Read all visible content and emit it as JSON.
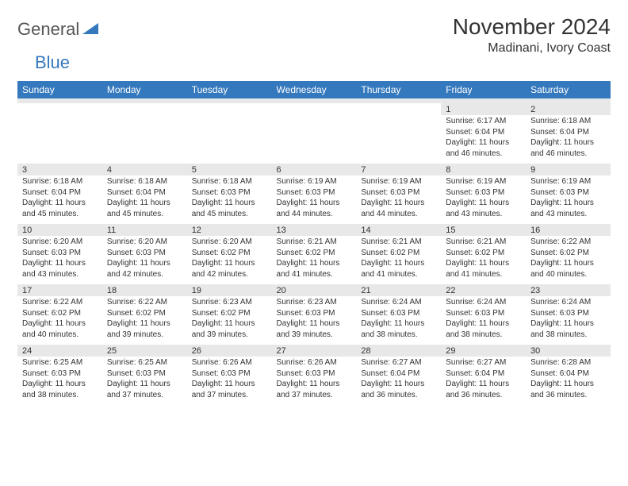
{
  "logo": {
    "word1": "General",
    "word2": "Blue"
  },
  "header": {
    "title": "November 2024",
    "location": "Madinani, Ivory Coast"
  },
  "colors": {
    "header_bg": "#3478bd",
    "header_fg": "#ffffff",
    "num_bg": "#e8e8e8",
    "body_bg": "#ffffff"
  },
  "weekdays": [
    "Sunday",
    "Monday",
    "Tuesday",
    "Wednesday",
    "Thursday",
    "Friday",
    "Saturday"
  ],
  "weeks": [
    [
      null,
      null,
      null,
      null,
      null,
      {
        "n": "1",
        "sr": "Sunrise: 6:17 AM",
        "ss": "Sunset: 6:04 PM",
        "dl": "Daylight: 11 hours and 46 minutes."
      },
      {
        "n": "2",
        "sr": "Sunrise: 6:18 AM",
        "ss": "Sunset: 6:04 PM",
        "dl": "Daylight: 11 hours and 46 minutes."
      }
    ],
    [
      {
        "n": "3",
        "sr": "Sunrise: 6:18 AM",
        "ss": "Sunset: 6:04 PM",
        "dl": "Daylight: 11 hours and 45 minutes."
      },
      {
        "n": "4",
        "sr": "Sunrise: 6:18 AM",
        "ss": "Sunset: 6:04 PM",
        "dl": "Daylight: 11 hours and 45 minutes."
      },
      {
        "n": "5",
        "sr": "Sunrise: 6:18 AM",
        "ss": "Sunset: 6:03 PM",
        "dl": "Daylight: 11 hours and 45 minutes."
      },
      {
        "n": "6",
        "sr": "Sunrise: 6:19 AM",
        "ss": "Sunset: 6:03 PM",
        "dl": "Daylight: 11 hours and 44 minutes."
      },
      {
        "n": "7",
        "sr": "Sunrise: 6:19 AM",
        "ss": "Sunset: 6:03 PM",
        "dl": "Daylight: 11 hours and 44 minutes."
      },
      {
        "n": "8",
        "sr": "Sunrise: 6:19 AM",
        "ss": "Sunset: 6:03 PM",
        "dl": "Daylight: 11 hours and 43 minutes."
      },
      {
        "n": "9",
        "sr": "Sunrise: 6:19 AM",
        "ss": "Sunset: 6:03 PM",
        "dl": "Daylight: 11 hours and 43 minutes."
      }
    ],
    [
      {
        "n": "10",
        "sr": "Sunrise: 6:20 AM",
        "ss": "Sunset: 6:03 PM",
        "dl": "Daylight: 11 hours and 43 minutes."
      },
      {
        "n": "11",
        "sr": "Sunrise: 6:20 AM",
        "ss": "Sunset: 6:03 PM",
        "dl": "Daylight: 11 hours and 42 minutes."
      },
      {
        "n": "12",
        "sr": "Sunrise: 6:20 AM",
        "ss": "Sunset: 6:02 PM",
        "dl": "Daylight: 11 hours and 42 minutes."
      },
      {
        "n": "13",
        "sr": "Sunrise: 6:21 AM",
        "ss": "Sunset: 6:02 PM",
        "dl": "Daylight: 11 hours and 41 minutes."
      },
      {
        "n": "14",
        "sr": "Sunrise: 6:21 AM",
        "ss": "Sunset: 6:02 PM",
        "dl": "Daylight: 11 hours and 41 minutes."
      },
      {
        "n": "15",
        "sr": "Sunrise: 6:21 AM",
        "ss": "Sunset: 6:02 PM",
        "dl": "Daylight: 11 hours and 41 minutes."
      },
      {
        "n": "16",
        "sr": "Sunrise: 6:22 AM",
        "ss": "Sunset: 6:02 PM",
        "dl": "Daylight: 11 hours and 40 minutes."
      }
    ],
    [
      {
        "n": "17",
        "sr": "Sunrise: 6:22 AM",
        "ss": "Sunset: 6:02 PM",
        "dl": "Daylight: 11 hours and 40 minutes."
      },
      {
        "n": "18",
        "sr": "Sunrise: 6:22 AM",
        "ss": "Sunset: 6:02 PM",
        "dl": "Daylight: 11 hours and 39 minutes."
      },
      {
        "n": "19",
        "sr": "Sunrise: 6:23 AM",
        "ss": "Sunset: 6:02 PM",
        "dl": "Daylight: 11 hours and 39 minutes."
      },
      {
        "n": "20",
        "sr": "Sunrise: 6:23 AM",
        "ss": "Sunset: 6:03 PM",
        "dl": "Daylight: 11 hours and 39 minutes."
      },
      {
        "n": "21",
        "sr": "Sunrise: 6:24 AM",
        "ss": "Sunset: 6:03 PM",
        "dl": "Daylight: 11 hours and 38 minutes."
      },
      {
        "n": "22",
        "sr": "Sunrise: 6:24 AM",
        "ss": "Sunset: 6:03 PM",
        "dl": "Daylight: 11 hours and 38 minutes."
      },
      {
        "n": "23",
        "sr": "Sunrise: 6:24 AM",
        "ss": "Sunset: 6:03 PM",
        "dl": "Daylight: 11 hours and 38 minutes."
      }
    ],
    [
      {
        "n": "24",
        "sr": "Sunrise: 6:25 AM",
        "ss": "Sunset: 6:03 PM",
        "dl": "Daylight: 11 hours and 38 minutes."
      },
      {
        "n": "25",
        "sr": "Sunrise: 6:25 AM",
        "ss": "Sunset: 6:03 PM",
        "dl": "Daylight: 11 hours and 37 minutes."
      },
      {
        "n": "26",
        "sr": "Sunrise: 6:26 AM",
        "ss": "Sunset: 6:03 PM",
        "dl": "Daylight: 11 hours and 37 minutes."
      },
      {
        "n": "27",
        "sr": "Sunrise: 6:26 AM",
        "ss": "Sunset: 6:03 PM",
        "dl": "Daylight: 11 hours and 37 minutes."
      },
      {
        "n": "28",
        "sr": "Sunrise: 6:27 AM",
        "ss": "Sunset: 6:04 PM",
        "dl": "Daylight: 11 hours and 36 minutes."
      },
      {
        "n": "29",
        "sr": "Sunrise: 6:27 AM",
        "ss": "Sunset: 6:04 PM",
        "dl": "Daylight: 11 hours and 36 minutes."
      },
      {
        "n": "30",
        "sr": "Sunrise: 6:28 AM",
        "ss": "Sunset: 6:04 PM",
        "dl": "Daylight: 11 hours and 36 minutes."
      }
    ]
  ]
}
